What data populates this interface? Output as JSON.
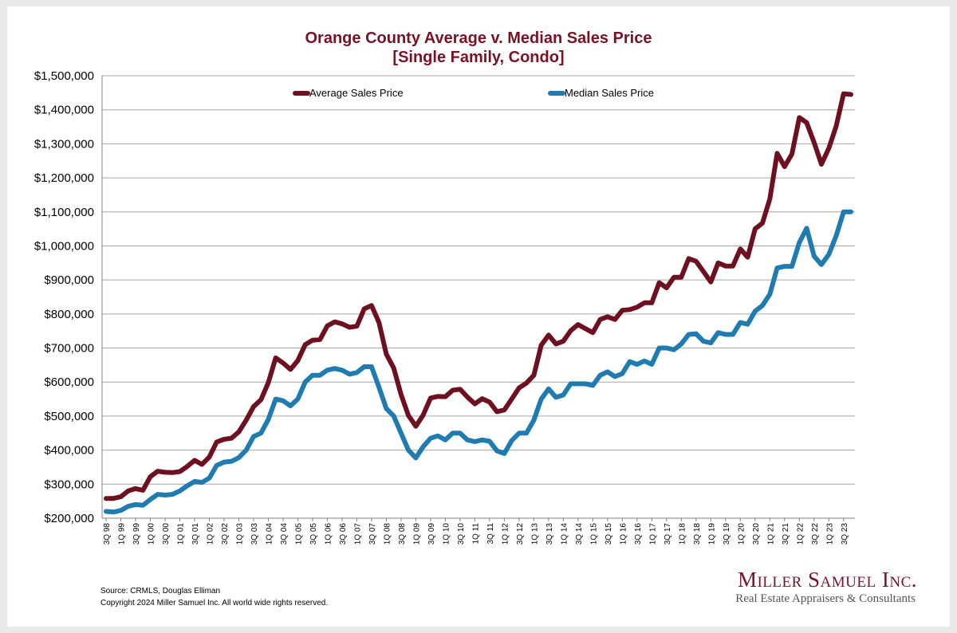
{
  "title_line1": "Orange County Average v. Median Sales Price",
  "title_line2": "[Single Family, Condo]",
  "source": "Source: CRMLS, Douglas Elliman",
  "copyright": "Copyright 2024 Miller Samuel Inc.  All world wide rights reserved.",
  "logo": {
    "name": "Miller Samuel Inc.",
    "tagline": "Real Estate Appraisers & Consultants"
  },
  "colors": {
    "average": "#6e1020",
    "median": "#1f7bb0",
    "title": "#7a1226"
  },
  "chart_data": {
    "type": "line",
    "title": "Orange County Average v. Median Sales Price [Single Family, Condo]",
    "xlabel": "",
    "ylabel": "",
    "ylim": [
      200000,
      1500000
    ],
    "yticks": [
      200000,
      300000,
      400000,
      500000,
      600000,
      700000,
      800000,
      900000,
      1000000,
      1100000,
      1200000,
      1300000,
      1400000,
      1500000
    ],
    "ytick_labels": [
      "$200,000",
      "$300,000",
      "$400,000",
      "$500,000",
      "$600,000",
      "$700,000",
      "$800,000",
      "$900,000",
      "$1,000,000",
      "$1,100,000",
      "$1,200,000",
      "$1,300,000",
      "$1,400,000",
      "$1,500,000"
    ],
    "x_tick_labels": [
      "3Q 98",
      "1Q 99",
      "3Q 99",
      "1Q 00",
      "3Q 00",
      "1Q 01",
      "3Q 01",
      "1Q 02",
      "3Q 02",
      "1Q 03",
      "3Q 03",
      "1Q 04",
      "3Q 04",
      "1Q 05",
      "3Q 05",
      "1Q 06",
      "3Q 06",
      "1Q 07",
      "3Q 07",
      "1Q 08",
      "3Q 08",
      "1Q 09",
      "3Q 09",
      "1Q 10",
      "3Q 10",
      "1Q 11",
      "3Q 11",
      "1Q 12",
      "3Q 12",
      "1Q 13",
      "3Q 13",
      "1Q 14",
      "3Q 14",
      "1Q 15",
      "3Q 15",
      "1Q 16",
      "3Q 16",
      "1Q 17",
      "3Q 17",
      "1Q 18",
      "3Q 18",
      "1Q 19",
      "3Q 19",
      "1Q 20",
      "3Q 20",
      "1Q 21",
      "3Q 21",
      "1Q 22",
      "3Q 22",
      "1Q 23",
      "3Q 23"
    ],
    "grid": true,
    "legend": "top",
    "series": [
      {
        "name": "Average Sales Price",
        "values": [
          258000,
          258000,
          263000,
          280000,
          287000,
          282000,
          322000,
          338000,
          335000,
          334000,
          337000,
          352000,
          370000,
          358000,
          380000,
          424000,
          432000,
          435000,
          454000,
          488000,
          528000,
          548000,
          598000,
          671000,
          656000,
          637000,
          663000,
          710000,
          723000,
          725000,
          765000,
          777000,
          771000,
          761000,
          764000,
          815000,
          825000,
          775000,
          682000,
          641000,
          563000,
          502000,
          470000,
          503000,
          553000,
          558000,
          557000,
          576000,
          579000,
          556000,
          536000,
          551000,
          541000,
          513000,
          518000,
          550000,
          583000,
          597000,
          620000,
          708000,
          738000,
          712000,
          720000,
          751000,
          769000,
          757000,
          745000,
          784000,
          792000,
          784000,
          811000,
          813000,
          820000,
          833000,
          833000,
          892000,
          877000,
          908000,
          908000,
          963000,
          955000,
          925000,
          894000,
          950000,
          941000,
          941000,
          991000,
          967000,
          1050000,
          1067000,
          1138000,
          1272000,
          1233000,
          1270000,
          1377000,
          1362000,
          1304000,
          1240000,
          1287000,
          1352000,
          1447000,
          1445000
        ]
      },
      {
        "name": "Median Sales Price",
        "values": [
          220000,
          218000,
          223000,
          235000,
          240000,
          238000,
          255000,
          270000,
          268000,
          270000,
          280000,
          295000,
          308000,
          305000,
          318000,
          355000,
          365000,
          367000,
          378000,
          400000,
          440000,
          450000,
          490000,
          550000,
          545000,
          530000,
          550000,
          600000,
          620000,
          620000,
          635000,
          640000,
          635000,
          623000,
          628000,
          645000,
          645000,
          585000,
          522000,
          500000,
          450000,
          400000,
          377000,
          410000,
          435000,
          442000,
          430000,
          450000,
          450000,
          430000,
          425000,
          430000,
          426000,
          398000,
          390000,
          428000,
          450000,
          450000,
          488000,
          550000,
          580000,
          555000,
          562000,
          595000,
          595000,
          595000,
          590000,
          620000,
          630000,
          616000,
          625000,
          660000,
          652000,
          662000,
          652000,
          700000,
          700000,
          695000,
          712000,
          740000,
          742000,
          720000,
          715000,
          745000,
          740000,
          740000,
          775000,
          770000,
          808000,
          825000,
          858000,
          935000,
          940000,
          940000,
          1010000,
          1052000,
          970000,
          945000,
          975000,
          1030000,
          1100000,
          1100000
        ]
      }
    ]
  }
}
